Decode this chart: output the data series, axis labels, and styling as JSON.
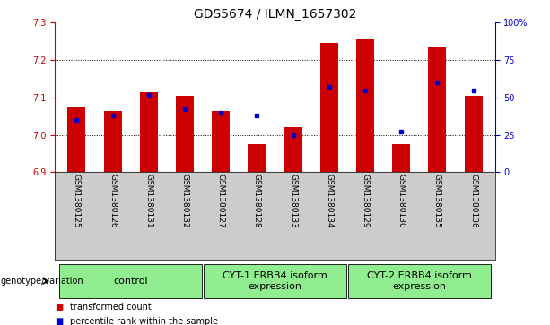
{
  "title": "GDS5674 / ILMN_1657302",
  "samples": [
    "GSM1380125",
    "GSM1380126",
    "GSM1380131",
    "GSM1380132",
    "GSM1380127",
    "GSM1380128",
    "GSM1380133",
    "GSM1380134",
    "GSM1380129",
    "GSM1380130",
    "GSM1380135",
    "GSM1380136"
  ],
  "red_values": [
    7.075,
    7.065,
    7.115,
    7.105,
    7.065,
    6.975,
    7.02,
    7.245,
    7.255,
    6.975,
    7.235,
    7.105
  ],
  "blue_values": [
    35,
    38,
    52,
    42,
    40,
    38,
    25,
    57,
    55,
    27,
    60,
    55
  ],
  "ylim_left": [
    6.9,
    7.3
  ],
  "ylim_right": [
    0,
    100
  ],
  "yticks_left": [
    6.9,
    7.0,
    7.1,
    7.2,
    7.3
  ],
  "yticks_right": [
    0,
    25,
    50,
    75,
    100
  ],
  "ytick_labels_right": [
    "0",
    "25",
    "50",
    "75",
    "100%"
  ],
  "bar_bottom": 6.9,
  "groups": [
    {
      "label": "control",
      "start": 0,
      "end": 3
    },
    {
      "label": "CYT-1 ERBB4 isoform\nexpression",
      "start": 4,
      "end": 7
    },
    {
      "label": "CYT-2 ERBB4 isoform\nexpression",
      "start": 8,
      "end": 11
    }
  ],
  "legend_red": "transformed count",
  "legend_blue": "percentile rank within the sample",
  "genotype_label": "genotype/variation",
  "red_color": "#cc0000",
  "blue_color": "#0000cc",
  "bar_width": 0.5,
  "background_plot": "#ffffff",
  "background_ticks": "#cccccc",
  "light_green": "#90EE90",
  "title_fontsize": 10,
  "tick_fontsize": 7,
  "label_fontsize": 6.5,
  "group_fontsize": 8
}
